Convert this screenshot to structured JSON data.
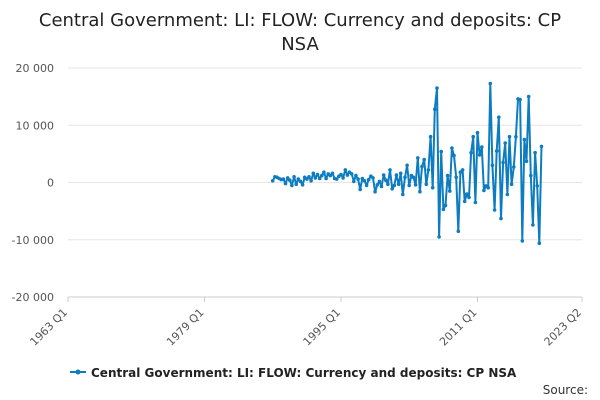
{
  "chart_data": {
    "type": "line",
    "title_line1": "Central Government: LI: FLOW: Currency and deposits: CP",
    "title_line2": "NSA",
    "y_ticks": [
      "20 000",
      "10 000",
      "0",
      "-10 000",
      "-20 000"
    ],
    "ylim": [
      -20000,
      20000
    ],
    "x_ticks": [
      "1963 Q1",
      "1979 Q1",
      "1995 Q1",
      "2011 Q1",
      "2023 Q2"
    ],
    "grid": "horizontal",
    "legend_position": "bottom",
    "source_label": "Source:",
    "series": [
      {
        "name": "Central Government: LI: FLOW: Currency and deposits: CP NSA",
        "color": "#0e7cc1",
        "points": [
          [
            "1987 Q1",
            300
          ],
          [
            "1987 Q2",
            1000
          ],
          [
            "1987 Q3",
            900
          ],
          [
            "1987 Q4",
            700
          ],
          [
            "1988 Q1",
            500
          ],
          [
            "1988 Q2",
            600
          ],
          [
            "1988 Q3",
            -200
          ],
          [
            "1988 Q4",
            800
          ],
          [
            "1989 Q1",
            400
          ],
          [
            "1989 Q2",
            -500
          ],
          [
            "1989 Q3",
            1000
          ],
          [
            "1989 Q4",
            -300
          ],
          [
            "1990 Q1",
            600
          ],
          [
            "1990 Q2",
            200
          ],
          [
            "1990 Q3",
            -400
          ],
          [
            "1990 Q4",
            900
          ],
          [
            "1991 Q1",
            600
          ],
          [
            "1991 Q2",
            1000
          ],
          [
            "1991 Q3",
            300
          ],
          [
            "1991 Q4",
            1600
          ],
          [
            "1992 Q1",
            800
          ],
          [
            "1992 Q2",
            1400
          ],
          [
            "1992 Q3",
            700
          ],
          [
            "1992 Q4",
            1200
          ],
          [
            "1993 Q1",
            1800
          ],
          [
            "1993 Q2",
            700
          ],
          [
            "1993 Q3",
            1500
          ],
          [
            "1993 Q4",
            1200
          ],
          [
            "1994 Q1",
            1600
          ],
          [
            "1994 Q2",
            700
          ],
          [
            "1994 Q3",
            600
          ],
          [
            "1994 Q4",
            1100
          ],
          [
            "1995 Q1",
            1400
          ],
          [
            "1995 Q2",
            800
          ],
          [
            "1995 Q3",
            2200
          ],
          [
            "1995 Q4",
            1300
          ],
          [
            "1996 Q1",
            1800
          ],
          [
            "1996 Q2",
            1500
          ],
          [
            "1996 Q3",
            200
          ],
          [
            "1996 Q4",
            1200
          ],
          [
            "1997 Q1",
            600
          ],
          [
            "1997 Q2",
            -1200
          ],
          [
            "1997 Q3",
            700
          ],
          [
            "1997 Q4",
            300
          ],
          [
            "1998 Q1",
            -500
          ],
          [
            "1998 Q2",
            500
          ],
          [
            "1998 Q3",
            1100
          ],
          [
            "1998 Q4",
            800
          ],
          [
            "1999 Q1",
            -1600
          ],
          [
            "1999 Q2",
            -400
          ],
          [
            "1999 Q3",
            200
          ],
          [
            "1999 Q4",
            -700
          ],
          [
            "2000 Q1",
            1300
          ],
          [
            "2000 Q2",
            400
          ],
          [
            "2000 Q3",
            -300
          ],
          [
            "2000 Q4",
            2200
          ],
          [
            "2001 Q1",
            -1100
          ],
          [
            "2001 Q2",
            -500
          ],
          [
            "2001 Q3",
            1300
          ],
          [
            "2001 Q4",
            -300
          ],
          [
            "2002 Q1",
            1600
          ],
          [
            "2002 Q2",
            -2100
          ],
          [
            "2002 Q3",
            900
          ],
          [
            "2002 Q4",
            3000
          ],
          [
            "2003 Q1",
            -500
          ],
          [
            "2003 Q2",
            1200
          ],
          [
            "2003 Q3",
            900
          ],
          [
            "2003 Q4",
            -400
          ],
          [
            "2004 Q1",
            4300
          ],
          [
            "2004 Q2",
            -1600
          ],
          [
            "2004 Q3",
            2800
          ],
          [
            "2004 Q4",
            4000
          ],
          [
            "2005 Q1",
            -300
          ],
          [
            "2005 Q2",
            2200
          ],
          [
            "2005 Q3",
            8000
          ],
          [
            "2005 Q4",
            -900
          ],
          [
            "2006 Q1",
            12800
          ],
          [
            "2006 Q2",
            16500
          ],
          [
            "2006 Q3",
            -9500
          ],
          [
            "2006 Q4",
            5400
          ],
          [
            "2007 Q1",
            -4700
          ],
          [
            "2007 Q2",
            -4000
          ],
          [
            "2007 Q3",
            1200
          ],
          [
            "2007 Q4",
            -1500
          ],
          [
            "2008 Q1",
            6000
          ],
          [
            "2008 Q2",
            4700
          ],
          [
            "2008 Q3",
            900
          ],
          [
            "2008 Q4",
            -8500
          ],
          [
            "2009 Q1",
            1800
          ],
          [
            "2009 Q2",
            2200
          ],
          [
            "2009 Q3",
            -3300
          ],
          [
            "2009 Q4",
            -2000
          ],
          [
            "2010 Q1",
            -2600
          ],
          [
            "2010 Q2",
            5200
          ],
          [
            "2010 Q3",
            8000
          ],
          [
            "2010 Q4",
            -3500
          ],
          [
            "2011 Q1",
            8700
          ],
          [
            "2011 Q2",
            4800
          ],
          [
            "2011 Q3",
            6200
          ],
          [
            "2011 Q4",
            -1400
          ],
          [
            "2012 Q1",
            -600
          ],
          [
            "2012 Q2",
            -900
          ],
          [
            "2012 Q3",
            17300
          ],
          [
            "2012 Q4",
            3000
          ],
          [
            "2013 Q1",
            -4800
          ],
          [
            "2013 Q2",
            5500
          ],
          [
            "2013 Q3",
            11400
          ],
          [
            "2013 Q4",
            -6300
          ],
          [
            "2014 Q1",
            3500
          ],
          [
            "2014 Q2",
            6900
          ],
          [
            "2014 Q3",
            -2100
          ],
          [
            "2014 Q4",
            8000
          ],
          [
            "2015 Q1",
            -300
          ],
          [
            "2015 Q2",
            2700
          ],
          [
            "2015 Q3",
            8000
          ],
          [
            "2015 Q4",
            14600
          ],
          [
            "2016 Q1",
            14500
          ],
          [
            "2016 Q2",
            -10200
          ],
          [
            "2016 Q3",
            7500
          ],
          [
            "2016 Q4",
            3700
          ],
          [
            "2017 Q1",
            15000
          ],
          [
            "2017 Q2",
            1200
          ],
          [
            "2017 Q3",
            -7400
          ],
          [
            "2017 Q4",
            5200
          ],
          [
            "2018 Q1",
            -600
          ],
          [
            "2018 Q2",
            -10600
          ],
          [
            "2018 Q3",
            6300
          ]
        ]
      }
    ]
  }
}
